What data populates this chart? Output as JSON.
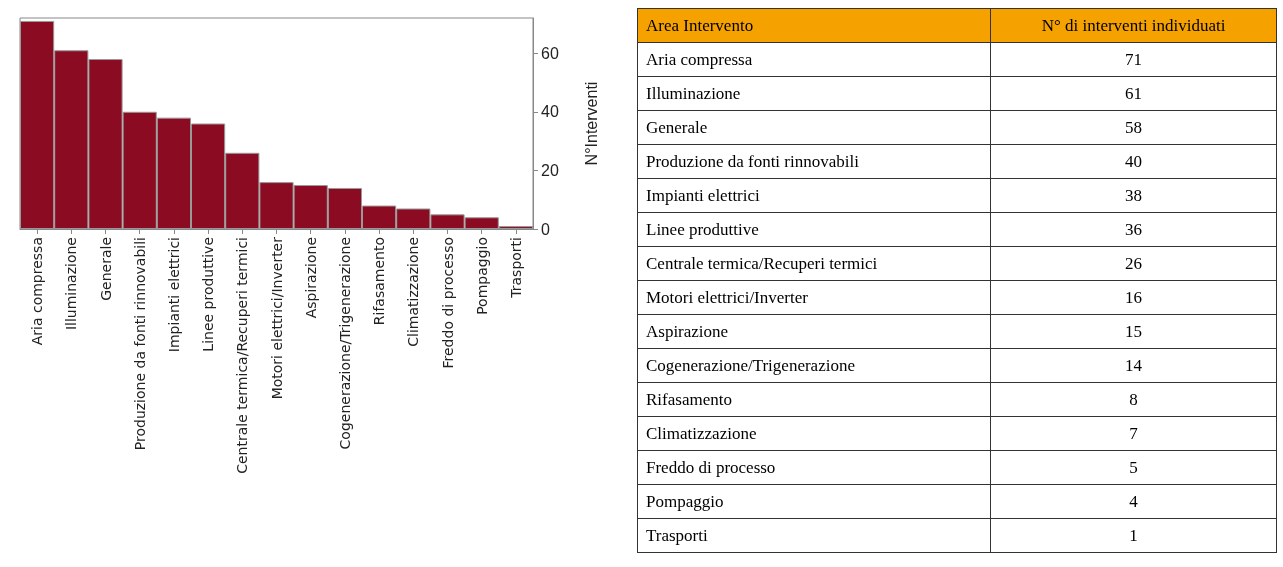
{
  "chart_data": [
    {
      "type": "bar",
      "categories": [
        "Aria compressa",
        "Illuminazione",
        "Generale",
        "Produzione da fonti rinnovabili",
        "Impianti elettrici",
        "Linee produttive",
        "Centrale termica/Recuperi termici",
        "Motori elettrici/Inverter",
        "Aspirazione",
        "Cogenerazione/Trigenerazione",
        "Rifasamento",
        "Climatizzazione",
        "Freddo di processo",
        "Pompaggio",
        "Trasporti"
      ],
      "values": [
        71,
        61,
        58,
        40,
        38,
        36,
        26,
        16,
        15,
        14,
        8,
        7,
        5,
        4,
        1
      ],
      "color": "#8b0c22",
      "ylabel": "N°Interventi",
      "ylim": [
        0,
        72
      ],
      "yticks": [
        0,
        20,
        40,
        60
      ],
      "grid": false
    },
    {
      "type": "other",
      "categories": [
        "Aria compressa",
        "Illuminazione",
        "Generale",
        "Produzione da fonti rinnovabili",
        "Impianti elettrici",
        "Linee produttive",
        "Centrale termica/Recuperi termici",
        "Motori elettrici/Inverter",
        "Aspirazione",
        "Cogenerazione/Trigenerazione",
        "Rifasamento",
        "Climatizzazione",
        "Freddo di processo",
        "Pompaggio",
        "Trasporti"
      ],
      "values": [
        71,
        61,
        58,
        40,
        38,
        36,
        26,
        16,
        15,
        14,
        8,
        7,
        5,
        4,
        1
      ],
      "color": "#f5a200",
      "data_labels": true,
      "annotations": [
        "Area Intervento",
        "N° di interventi individuati"
      ]
    }
  ]
}
